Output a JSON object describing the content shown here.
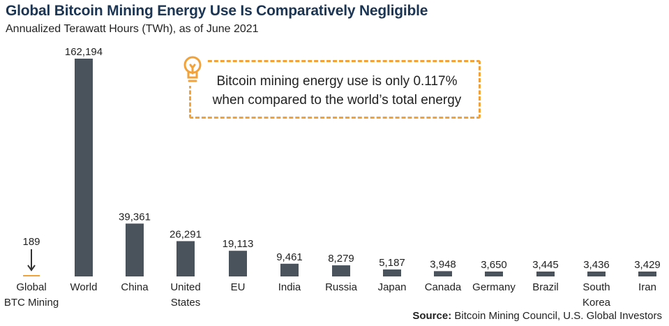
{
  "header": {
    "title": "Global Bitcoin Mining Energy Use Is Comparatively Negligible",
    "subtitle": "Annualized Terawatt Hours (TWh), as of June 2021"
  },
  "callout": {
    "text": "Bitcoin mining energy use is only 0.117% when compared to the world’s total energy",
    "icon": "lightbulb-icon",
    "border_color": "#f2a23a"
  },
  "source": {
    "label": "Source:",
    "text": " Bitcoin Mining Council, U.S. Global Investors"
  },
  "colors": {
    "bar": "#4a535c",
    "highlight": "#f2a23a",
    "title": "#1c3553"
  },
  "chart_data": {
    "type": "bar",
    "title": "Global Bitcoin Mining Energy Use Is Comparatively Negligible",
    "subtitle": "Annualized Terawatt Hours (TWh), as of June 2021",
    "categories": [
      "Global BTC Mining",
      "World",
      "China",
      "United States",
      "EU",
      "India",
      "Russia",
      "Japan",
      "Canada",
      "Germany",
      "Brazil",
      "South Korea",
      "Iran"
    ],
    "category_lines": [
      [
        "Global",
        "BTC Mining"
      ],
      [
        "World"
      ],
      [
        "China"
      ],
      [
        "United",
        "States"
      ],
      [
        "EU"
      ],
      [
        "India"
      ],
      [
        "Russia"
      ],
      [
        "Japan"
      ],
      [
        "Canada"
      ],
      [
        "Germany"
      ],
      [
        "Brazil"
      ],
      [
        "South",
        "Korea"
      ],
      [
        "Iran"
      ]
    ],
    "values": [
      189,
      162194,
      39361,
      26291,
      19113,
      9461,
      8279,
      5187,
      3948,
      3650,
      3445,
      3436,
      3429
    ],
    "value_labels": [
      "189",
      "162,194",
      "39,361",
      "26,291",
      "19,113",
      "9,461",
      "8,279",
      "5,187",
      "3,948",
      "3,650",
      "3,445",
      "3,436",
      "3,429"
    ],
    "highlight_index": 0,
    "ylim": [
      0,
      162194
    ],
    "grid": false,
    "legend": "none",
    "xlabel": "",
    "ylabel": ""
  }
}
